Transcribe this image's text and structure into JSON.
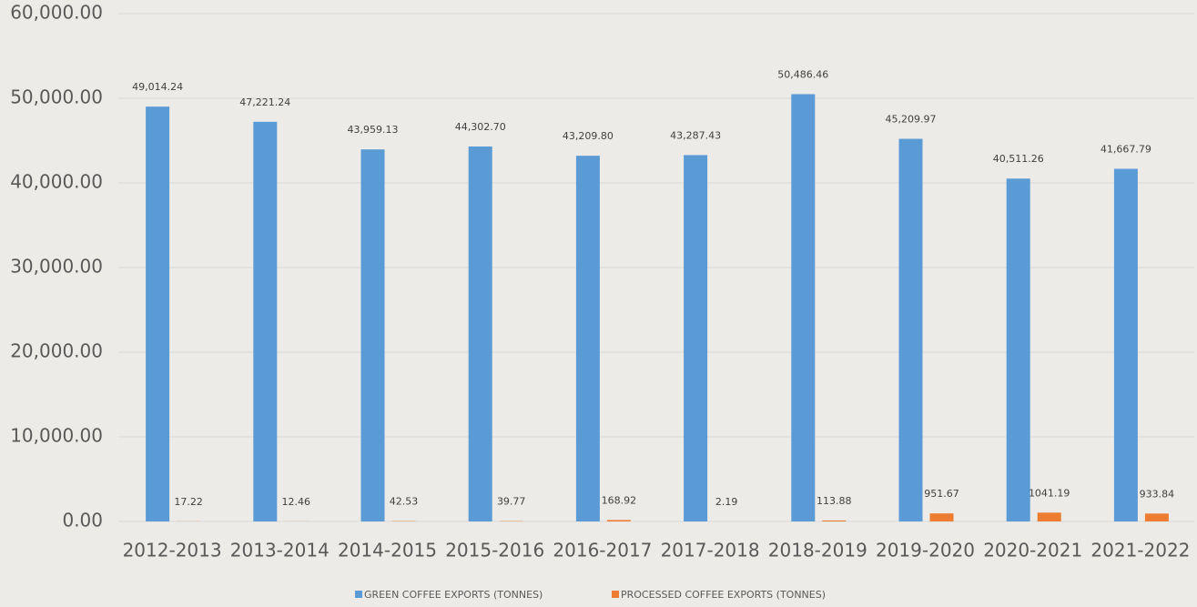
{
  "chart_data": {
    "type": "bar",
    "categories": [
      "2012-2013",
      "2013-2014",
      "2014-2015",
      "2015-2016",
      "2016-2017",
      "2017-2018",
      "2018-2019",
      "2019-2020",
      "2020-2021",
      "2021-2022"
    ],
    "series": [
      {
        "name": "GREEN COFFEE EXPORTS (TONNES)",
        "color": "#5b9bd5",
        "values": [
          49014.24,
          47221.24,
          43959.13,
          44302.7,
          43209.8,
          43287.43,
          50486.46,
          45209.97,
          40511.26,
          41667.79
        ],
        "value_labels": [
          "49,014.24",
          "47,221.24",
          "43,959.13",
          "44,302.70",
          "43,209.80",
          "43,287.43",
          "50,486.46",
          "45,209.97",
          "40,511.26",
          "41,667.79"
        ]
      },
      {
        "name": "PROCESSED COFFEE EXPORTS (TONNES)",
        "color": "#ed7d31",
        "values": [
          17.22,
          12.46,
          42.53,
          39.77,
          168.92,
          2.19,
          113.88,
          951.67,
          1041.19,
          933.84
        ]
      }
    ],
    "ylim": [
      0,
      60000
    ],
    "yticks": [
      {
        "value": 0,
        "label": "0.00"
      },
      {
        "value": 10000,
        "label": "10,000.00"
      },
      {
        "value": 20000,
        "label": "20,000.00"
      },
      {
        "value": 30000,
        "label": "30,000.00"
      },
      {
        "value": 40000,
        "label": "40,000.00"
      },
      {
        "value": 50000,
        "label": "50,000.00"
      },
      {
        "value": 60000,
        "label": "60,000.00"
      }
    ],
    "grid": true,
    "legend": "bottom"
  }
}
